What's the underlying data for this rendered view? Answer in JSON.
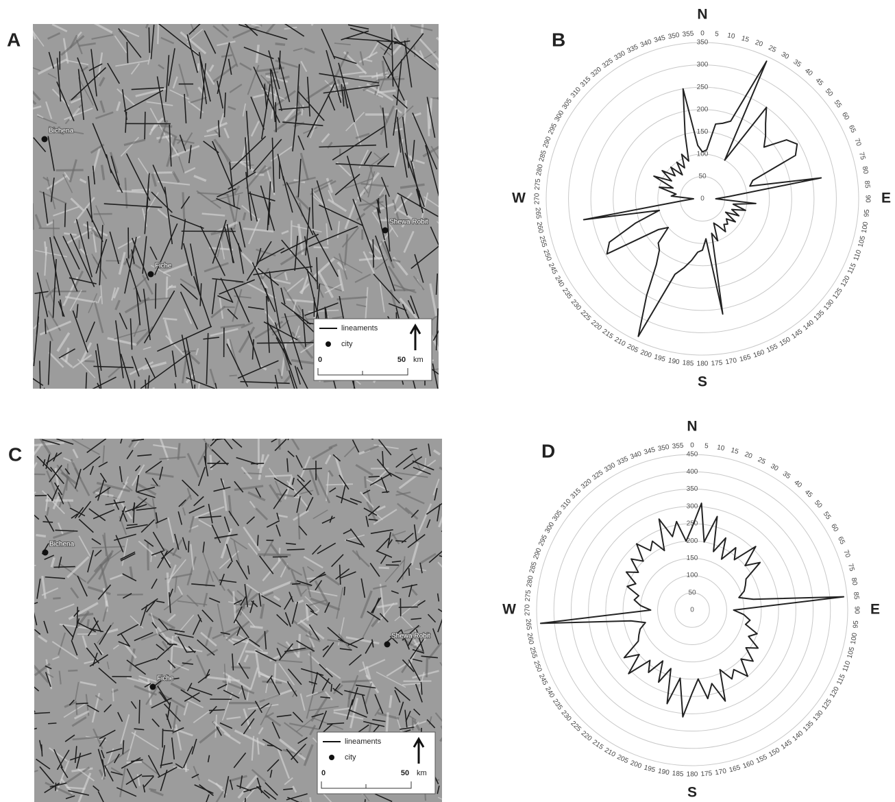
{
  "chart_data": [
    {
      "type": "radar",
      "label": "B",
      "directions": [
        "N",
        "E",
        "S",
        "W"
      ],
      "angles": [
        0,
        5,
        10,
        15,
        20,
        25,
        30,
        35,
        40,
        45,
        50,
        55,
        60,
        65,
        70,
        75,
        80,
        85,
        90,
        95,
        100,
        105,
        110,
        115,
        120,
        125,
        130,
        135,
        140,
        145,
        150,
        155,
        160,
        165,
        170,
        175,
        180,
        185,
        190,
        195,
        200,
        205,
        210,
        215,
        220,
        225,
        230,
        235,
        240,
        245,
        250,
        255,
        260,
        265,
        270,
        275,
        280,
        285,
        290,
        295,
        300,
        305,
        310,
        315,
        320,
        325,
        330,
        335,
        340,
        345,
        350,
        355
      ],
      "values": [
        105,
        110,
        170,
        175,
        185,
        340,
        100,
        250,
        220,
        200,
        180,
        230,
        245,
        230,
        120,
        110,
        270,
        60,
        30,
        120,
        70,
        100,
        70,
        90,
        60,
        90,
        70,
        80,
        75,
        90,
        70,
        60,
        100,
        80,
        262,
        90,
        115,
        120,
        140,
        160,
        180,
        340,
        250,
        180,
        150,
        140,
        100,
        120,
        247,
        230,
        160,
        100,
        270,
        40,
        20,
        70,
        60,
        100,
        70,
        120,
        80,
        110,
        80,
        100,
        70,
        100,
        80,
        110,
        90,
        150,
        250,
        120
      ],
      "rlim": [
        0,
        350
      ],
      "rticks": [
        0,
        50,
        100,
        150,
        200,
        250,
        300,
        350
      ],
      "color": "#222",
      "grid": true
    },
    {
      "type": "radar",
      "label": "D",
      "directions": [
        "N",
        "E",
        "S",
        "W"
      ],
      "angles": [
        0,
        5,
        10,
        15,
        20,
        25,
        30,
        35,
        40,
        45,
        50,
        55,
        60,
        65,
        70,
        75,
        80,
        85,
        90,
        95,
        100,
        105,
        110,
        115,
        120,
        125,
        130,
        135,
        140,
        145,
        150,
        155,
        160,
        165,
        170,
        175,
        180,
        185,
        190,
        195,
        200,
        205,
        210,
        215,
        220,
        225,
        230,
        235,
        240,
        245,
        250,
        255,
        260,
        265,
        270,
        275,
        280,
        285,
        290,
        295,
        300,
        305,
        310,
        315,
        320,
        325,
        330,
        335,
        340,
        345,
        350,
        355
      ],
      "values": [
        240,
        310,
        200,
        280,
        180,
        230,
        170,
        220,
        190,
        260,
        200,
        240,
        180,
        170,
        160,
        140,
        180,
        440,
        120,
        150,
        170,
        160,
        200,
        180,
        220,
        190,
        230,
        200,
        250,
        210,
        230,
        190,
        280,
        220,
        260,
        200,
        240,
        310,
        200,
        280,
        180,
        230,
        170,
        220,
        190,
        260,
        200,
        240,
        180,
        170,
        160,
        140,
        180,
        440,
        120,
        150,
        170,
        160,
        200,
        180,
        220,
        190,
        230,
        200,
        250,
        210,
        230,
        190,
        280,
        220,
        260,
        200
      ],
      "rlim": [
        0,
        450
      ],
      "rticks": [
        0,
        50,
        100,
        150,
        200,
        250,
        300,
        350,
        400,
        450
      ],
      "color": "#222",
      "grid": true
    }
  ],
  "maps": [
    {
      "label": "A",
      "cities": [
        "Bichena",
        "Fiche",
        "Shewa Robit"
      ],
      "legend": {
        "line": "lineaments",
        "point": "city",
        "scale_start": "0",
        "scale_end": "50",
        "unit": "km"
      }
    },
    {
      "label": "C",
      "cities": [
        "Bichena",
        "Fiche",
        "Shewa Robit"
      ],
      "legend": {
        "line": "lineaments",
        "point": "city",
        "scale_start": "0",
        "scale_end": "50",
        "unit": "km"
      }
    }
  ]
}
